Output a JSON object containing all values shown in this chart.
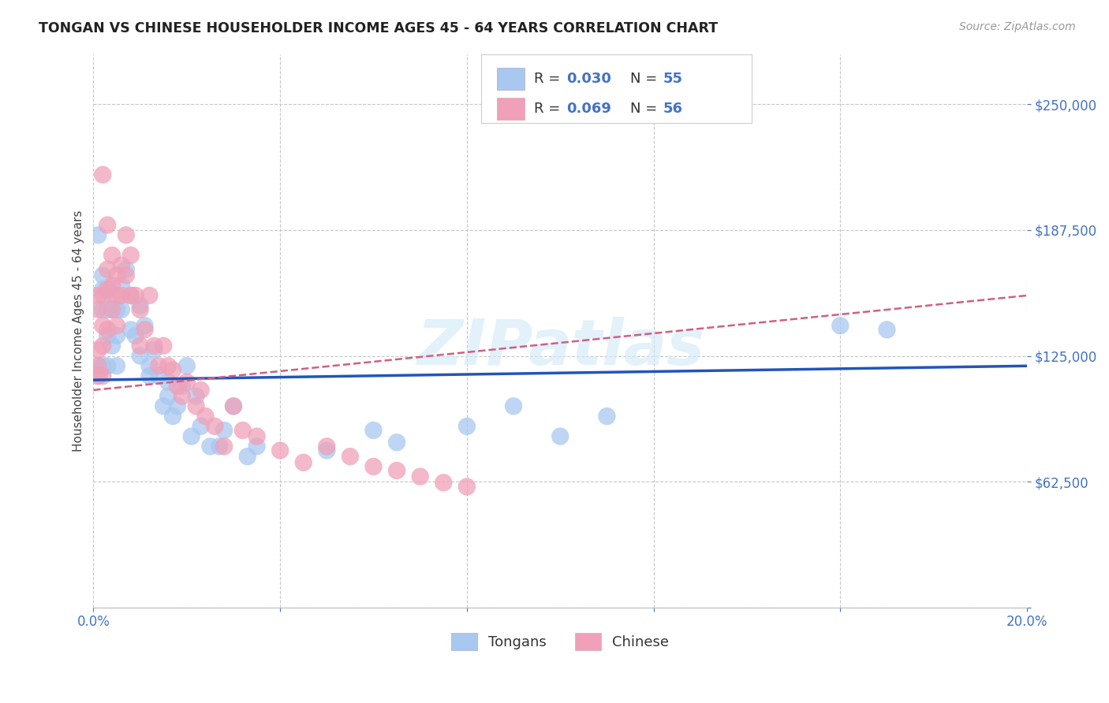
{
  "title": "TONGAN VS CHINESE HOUSEHOLDER INCOME AGES 45 - 64 YEARS CORRELATION CHART",
  "source": "Source: ZipAtlas.com",
  "ylabel": "Householder Income Ages 45 - 64 years",
  "xlim": [
    0.0,
    0.2
  ],
  "ylim": [
    0,
    275000
  ],
  "yticks": [
    0,
    62500,
    125000,
    187500,
    250000
  ],
  "yticklabels": [
    "",
    "$62,500",
    "$125,000",
    "$187,500",
    "$250,000"
  ],
  "xtick_positions": [
    0.0,
    0.04,
    0.08,
    0.12,
    0.16,
    0.2
  ],
  "xticklabels": [
    "0.0%",
    "",
    "",
    "",
    "",
    "20.0%"
  ],
  "ytick_color": "#4472c4",
  "grid_color": "#c8c8c8",
  "background_color": "#ffffff",
  "watermark": "ZIPatlas",
  "tongan_color": "#a8c8f0",
  "chinese_color": "#f0a0b8",
  "tongan_line_color": "#2255bb",
  "chinese_line_color": "#d06080",
  "tongan_N": 55,
  "chinese_N": 56,
  "tongan_R": "0.030",
  "chinese_R": "0.069",
  "tongan_x": [
    0.001,
    0.001,
    0.001,
    0.002,
    0.002,
    0.002,
    0.002,
    0.003,
    0.003,
    0.003,
    0.003,
    0.004,
    0.004,
    0.004,
    0.005,
    0.005,
    0.005,
    0.006,
    0.006,
    0.007,
    0.008,
    0.008,
    0.009,
    0.01,
    0.01,
    0.011,
    0.012,
    0.012,
    0.013,
    0.014,
    0.015,
    0.016,
    0.016,
    0.017,
    0.018,
    0.019,
    0.02,
    0.021,
    0.022,
    0.023,
    0.025,
    0.027,
    0.028,
    0.03,
    0.033,
    0.035,
    0.05,
    0.06,
    0.065,
    0.08,
    0.09,
    0.1,
    0.11,
    0.16,
    0.17
  ],
  "tongan_y": [
    185000,
    120000,
    115000,
    165000,
    158000,
    148000,
    120000,
    158000,
    148000,
    135000,
    120000,
    155000,
    148000,
    130000,
    148000,
    135000,
    120000,
    160000,
    148000,
    168000,
    155000,
    138000,
    135000,
    150000,
    125000,
    140000,
    120000,
    115000,
    128000,
    115000,
    100000,
    112000,
    105000,
    95000,
    100000,
    110000,
    120000,
    85000,
    105000,
    90000,
    80000,
    80000,
    88000,
    100000,
    75000,
    80000,
    78000,
    88000,
    82000,
    90000,
    100000,
    85000,
    95000,
    140000,
    138000
  ],
  "chinese_x": [
    0.001,
    0.001,
    0.001,
    0.001,
    0.001,
    0.002,
    0.002,
    0.002,
    0.002,
    0.002,
    0.003,
    0.003,
    0.003,
    0.003,
    0.004,
    0.004,
    0.004,
    0.005,
    0.005,
    0.005,
    0.006,
    0.006,
    0.007,
    0.007,
    0.008,
    0.008,
    0.009,
    0.01,
    0.01,
    0.011,
    0.012,
    0.013,
    0.014,
    0.015,
    0.016,
    0.017,
    0.018,
    0.019,
    0.02,
    0.022,
    0.023,
    0.024,
    0.026,
    0.028,
    0.03,
    0.032,
    0.035,
    0.04,
    0.045,
    0.05,
    0.055,
    0.06,
    0.065,
    0.07,
    0.075,
    0.08
  ],
  "chinese_y": [
    155000,
    148000,
    128000,
    120000,
    115000,
    215000,
    155000,
    140000,
    130000,
    115000,
    190000,
    168000,
    158000,
    138000,
    175000,
    160000,
    148000,
    165000,
    155000,
    140000,
    170000,
    155000,
    185000,
    165000,
    175000,
    155000,
    155000,
    148000,
    130000,
    138000,
    155000,
    130000,
    120000,
    130000,
    120000,
    118000,
    110000,
    105000,
    112000,
    100000,
    108000,
    95000,
    90000,
    80000,
    100000,
    88000,
    85000,
    78000,
    72000,
    80000,
    75000,
    70000,
    68000,
    65000,
    62000,
    60000
  ]
}
